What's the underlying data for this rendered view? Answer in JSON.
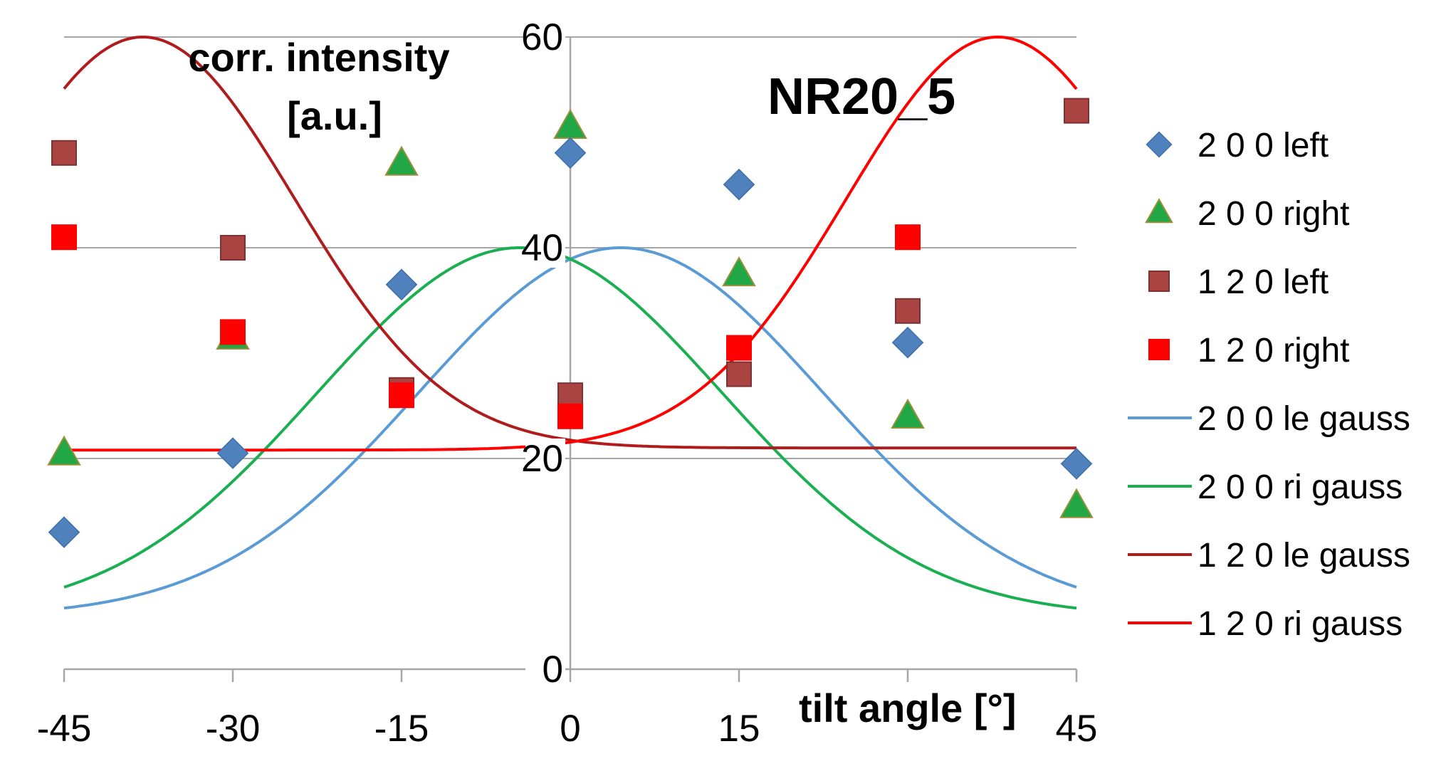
{
  "chart_data": {
    "type": "scatter",
    "title": "NR20_5",
    "xlabel": "tilt angle [°]",
    "ylabel_line1": "corr. intensity",
    "ylabel_line2": "[a.u.]",
    "xlim": [
      -45,
      45
    ],
    "ylim": [
      0,
      60
    ],
    "x_ticks": [
      "-45",
      "-30",
      "-15",
      "0",
      "15",
      "45"
    ],
    "y_ticks": [
      "0",
      "20",
      "40",
      "60"
    ],
    "grid": true,
    "legend_position": "right",
    "series": [
      {
        "name": "2 0 0 left",
        "kind": "points",
        "marker": "diamond",
        "color": "#4f81bd",
        "x": [
          -45,
          -30,
          -15,
          0,
          15,
          30,
          45
        ],
        "y": [
          13,
          20.5,
          36.5,
          49,
          46,
          31,
          19.5
        ]
      },
      {
        "name": "2 0 0 right",
        "kind": "points",
        "marker": "triangle",
        "color": "#21a746",
        "x": [
          -45,
          -30,
          -15,
          0,
          15,
          30,
          45
        ],
        "y": [
          20.5,
          31.5,
          48,
          51.5,
          37.5,
          24,
          15.5
        ]
      },
      {
        "name": "1 2 0 left",
        "kind": "points",
        "marker": "square",
        "color": "#a94443",
        "x": [
          -45,
          -30,
          -15,
          0,
          15,
          30,
          45
        ],
        "y": [
          49,
          40,
          26.5,
          26,
          28,
          34,
          53
        ]
      },
      {
        "name": "1 2 0 right",
        "kind": "points",
        "marker": "square",
        "color": "#ff0000",
        "x": [
          -45,
          -30,
          -15,
          0,
          15,
          30
        ],
        "y": [
          41,
          32,
          26,
          24,
          30.5,
          41
        ]
      },
      {
        "name": "2 0 0 le gauss",
        "kind": "gauss",
        "color": "#5b9bd5",
        "base": 5,
        "amp": 35,
        "center": 4.5,
        "sigma": 18
      },
      {
        "name": "2 0 0 ri gauss",
        "kind": "gauss",
        "color": "#1aaf50",
        "base": 5,
        "amp": 35,
        "center": -4.5,
        "sigma": 18
      },
      {
        "name": "1 2 0 le gauss",
        "kind": "gauss",
        "color": "#b01b1b",
        "base": 21,
        "amp": 39,
        "center": -38,
        "sigma": 13.5
      },
      {
        "name": "1 2 0 ri gauss",
        "kind": "gauss",
        "color": "#ff0000",
        "base": 20.8,
        "amp": 39.2,
        "center": 38,
        "sigma": 13.5
      }
    ]
  }
}
